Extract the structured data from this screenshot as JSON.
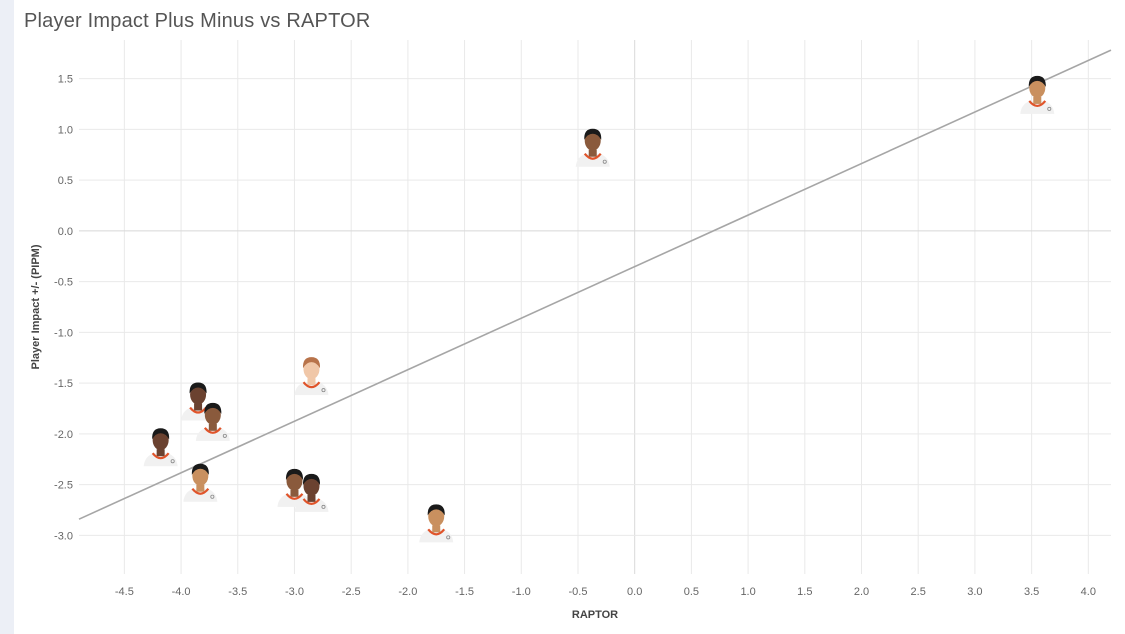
{
  "chart_data": {
    "type": "scatter",
    "title": "Player Impact Plus Minus vs RAPTOR",
    "xlabel": "RAPTOR",
    "ylabel": "Player Impact +/- (PIPM)",
    "xlim": [
      -4.9,
      4.2
    ],
    "ylim": [
      -3.38,
      1.88
    ],
    "x_ticks": [
      "-4.5",
      "-4.0",
      "-3.5",
      "-3.0",
      "-2.5",
      "-2.0",
      "-1.5",
      "-1.0",
      "-0.5",
      "0.0",
      "0.5",
      "1.0",
      "1.5",
      "2.0",
      "2.5",
      "3.0",
      "3.5",
      "4.0"
    ],
    "y_ticks": [
      "1.5",
      "1.0",
      "0.5",
      "0.0",
      "-0.5",
      "-1.0",
      "-1.5",
      "-2.0",
      "-2.5",
      "-3.0"
    ],
    "grid": true,
    "points": [
      {
        "x": 3.55,
        "y": 1.27
      },
      {
        "x": -0.37,
        "y": 0.75
      },
      {
        "x": -2.85,
        "y": -1.5
      },
      {
        "x": -3.85,
        "y": -1.75
      },
      {
        "x": -3.72,
        "y": -1.95
      },
      {
        "x": -4.18,
        "y": -2.2
      },
      {
        "x": -3.83,
        "y": -2.55
      },
      {
        "x": -3.0,
        "y": -2.6
      },
      {
        "x": -2.85,
        "y": -2.65
      },
      {
        "x": -1.75,
        "y": -2.95
      }
    ],
    "trendline": {
      "x": [
        -4.9,
        4.2
      ],
      "y": [
        -2.84,
        1.78
      ]
    },
    "colors": {
      "trendline": "#a6a6a6",
      "grid": "#e9e9e9",
      "zero_line": "#d8d8d8",
      "jersey": "#f1f1f1",
      "jersey_trim": "#e0542a",
      "skin_tones": [
        "#c9905f",
        "#8a5a3c",
        "#f0c7a8",
        "#6b4230"
      ],
      "hair": "#1a1a1a",
      "hair_light": "#b8734a"
    }
  }
}
